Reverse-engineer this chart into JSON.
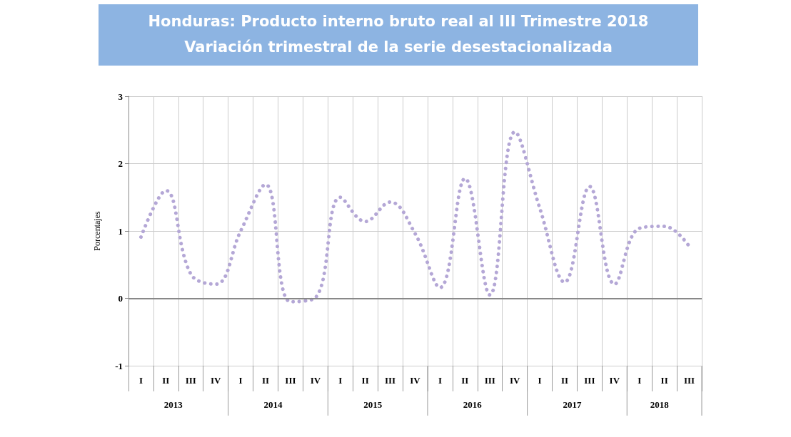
{
  "chart_data": {
    "type": "line",
    "title": "Honduras: Producto interno bruto real al III Trimestre 2018",
    "subtitle": "Variación trimestral de la serie desestacionalizada",
    "ylabel": "Porcentajes",
    "categories": [
      "I",
      "II",
      "III",
      "IV",
      "I",
      "II",
      "III",
      "IV",
      "I",
      "II",
      "III",
      "IV",
      "I",
      "II",
      "III",
      "IV",
      "I",
      "II",
      "III",
      "IV",
      "I",
      "II",
      "III"
    ],
    "series": [
      {
        "color": "#b4a7d6",
        "values": [
          0.91,
          1.6,
          0.36,
          0.21,
          1.0,
          1.69,
          -0.05,
          0.01,
          1.5,
          1.14,
          1.43,
          0.96,
          0.16,
          1.78,
          0.05,
          2.47,
          1.34,
          0.24,
          1.66,
          0.21,
          1.04,
          1.07,
          0.77
        ]
      }
    ],
    "annotations": [
      "2013",
      "2014",
      "2015",
      "2016",
      "2017",
      "2018"
    ],
    "ylim": [
      -1,
      3
    ],
    "yticks": [
      -1,
      0,
      1,
      2,
      3
    ],
    "grid": true,
    "marker": "none",
    "line_style": "dotted"
  }
}
